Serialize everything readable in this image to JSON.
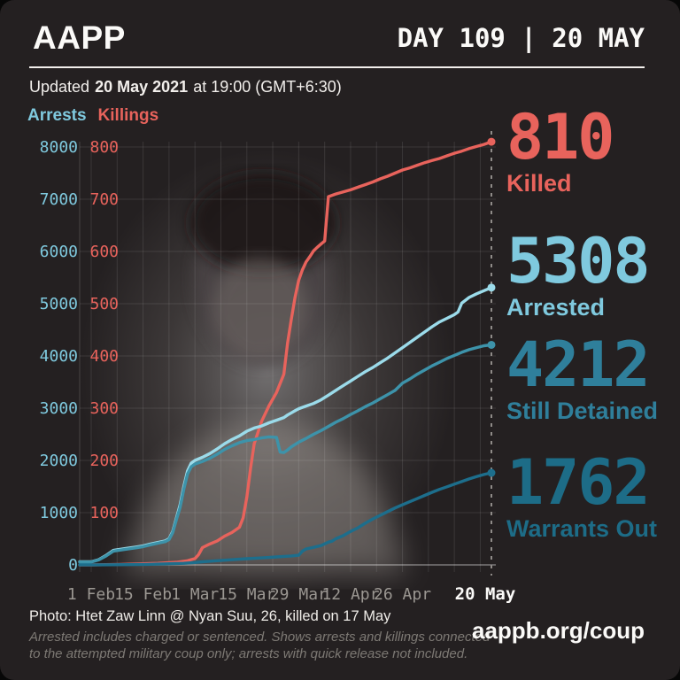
{
  "header": {
    "logo": "AAPP",
    "day_label": "DAY 109 | 20 MAY",
    "updated_prefix": "Updated",
    "updated_date": "20 May 2021",
    "updated_suffix": "at 19:00 (GMT+6:30)"
  },
  "legend": {
    "arrests_label": "Arrests",
    "killings_label": "Killings"
  },
  "stats": {
    "killed": {
      "value": "810",
      "label": "Killed",
      "color": "#e8635c"
    },
    "arrested": {
      "value": "5308",
      "label": "Arrested",
      "color": "#7fc9de"
    },
    "detained": {
      "value": "4212",
      "label": "Still Detained",
      "color": "#2f7f9b"
    },
    "warrants": {
      "value": "1762",
      "label": "Warrants Out",
      "color": "#1d6c87"
    }
  },
  "footer": {
    "photo_caption": "Photo: Htet Zaw Linn @ Nyan Suu, 26, killed on 17 May",
    "disclaimer_line1": "Arrested includes charged or sentenced. Shows arrests and killings connected",
    "disclaimer_line2": "to the attempted military coup only; arrests with quick release not included.",
    "website": "aappb.org/coup"
  },
  "chart_data": {
    "type": "line",
    "background_photo": "grayscale portrait of Htet Zaw Linn",
    "grid": {
      "vertical_interval_days": 7,
      "horizontal_interval_arrests": 1000
    },
    "x_ticks": [
      {
        "day": 0,
        "label": "1 Feb"
      },
      {
        "day": 14,
        "label": "15 Feb"
      },
      {
        "day": 28,
        "label": "1 Mar"
      },
      {
        "day": 42,
        "label": "15 Mar"
      },
      {
        "day": 56,
        "label": "29 Mar"
      },
      {
        "day": 70,
        "label": "12 Apr"
      },
      {
        "day": 84,
        "label": "26 Apr"
      }
    ],
    "x_end": {
      "day": 108,
      "label": "20 May"
    },
    "y_axis_arrests": {
      "title": "Arrests",
      "color": "#7fc9de",
      "max": 8000,
      "ticks": [
        8000,
        7000,
        6000,
        5000,
        4000,
        3000,
        2000,
        1000,
        0
      ]
    },
    "y_axis_killings": {
      "title": "Killings",
      "color": "#e8635c",
      "max": 800,
      "ticks": [
        800,
        700,
        600,
        500,
        400,
        300,
        200,
        100
      ]
    },
    "series": [
      {
        "id": "killings",
        "name": "Killings",
        "axis": "killings",
        "color": "#e8635c",
        "end_value": 810,
        "points": [
          [
            0,
            0
          ],
          [
            8,
            1
          ],
          [
            18,
            3
          ],
          [
            23,
            5
          ],
          [
            26,
            8
          ],
          [
            28,
            12
          ],
          [
            29,
            20
          ],
          [
            30,
            33
          ],
          [
            32,
            40
          ],
          [
            34,
            46
          ],
          [
            36,
            55
          ],
          [
            38,
            62
          ],
          [
            40,
            72
          ],
          [
            41,
            90
          ],
          [
            42,
            130
          ],
          [
            43,
            185
          ],
          [
            44,
            232
          ],
          [
            46,
            275
          ],
          [
            48,
            305
          ],
          [
            50,
            330
          ],
          [
            52,
            365
          ],
          [
            53,
            425
          ],
          [
            54,
            470
          ],
          [
            55,
            512
          ],
          [
            56,
            545
          ],
          [
            57,
            565
          ],
          [
            58,
            580
          ],
          [
            59,
            590
          ],
          [
            60,
            601
          ],
          [
            61,
            608
          ],
          [
            62,
            614
          ],
          [
            63,
            620
          ],
          [
            64,
            705
          ],
          [
            66,
            710
          ],
          [
            68,
            714
          ],
          [
            70,
            718
          ],
          [
            72,
            723
          ],
          [
            74,
            728
          ],
          [
            76,
            733
          ],
          [
            78,
            739
          ],
          [
            80,
            744
          ],
          [
            82,
            750
          ],
          [
            84,
            756
          ],
          [
            86,
            760
          ],
          [
            88,
            765
          ],
          [
            90,
            770
          ],
          [
            92,
            774
          ],
          [
            94,
            778
          ],
          [
            96,
            783
          ],
          [
            98,
            788
          ],
          [
            100,
            792
          ],
          [
            102,
            797
          ],
          [
            104,
            801
          ],
          [
            106,
            805
          ],
          [
            108,
            810
          ]
        ]
      },
      {
        "id": "arrests",
        "name": "Arrests",
        "axis": "arrests",
        "color": "#9bdbea",
        "end_value": 5308,
        "points": [
          [
            0,
            60
          ],
          [
            2,
            100
          ],
          [
            4,
            180
          ],
          [
            6,
            280
          ],
          [
            8,
            300
          ],
          [
            10,
            320
          ],
          [
            12,
            340
          ],
          [
            14,
            365
          ],
          [
            16,
            400
          ],
          [
            18,
            430
          ],
          [
            20,
            460
          ],
          [
            21,
            500
          ],
          [
            22,
            640
          ],
          [
            23,
            900
          ],
          [
            24,
            1150
          ],
          [
            25,
            1500
          ],
          [
            26,
            1800
          ],
          [
            27,
            1950
          ],
          [
            28,
            2000
          ],
          [
            30,
            2060
          ],
          [
            32,
            2130
          ],
          [
            34,
            2220
          ],
          [
            36,
            2320
          ],
          [
            38,
            2400
          ],
          [
            40,
            2470
          ],
          [
            42,
            2560
          ],
          [
            44,
            2620
          ],
          [
            46,
            2660
          ],
          [
            48,
            2720
          ],
          [
            50,
            2770
          ],
          [
            52,
            2820
          ],
          [
            53,
            2870
          ],
          [
            54,
            2910
          ],
          [
            55,
            2950
          ],
          [
            56,
            2990
          ],
          [
            58,
            3040
          ],
          [
            60,
            3090
          ],
          [
            62,
            3160
          ],
          [
            64,
            3250
          ],
          [
            66,
            3340
          ],
          [
            68,
            3430
          ],
          [
            70,
            3520
          ],
          [
            72,
            3610
          ],
          [
            74,
            3700
          ],
          [
            76,
            3780
          ],
          [
            78,
            3870
          ],
          [
            80,
            3960
          ],
          [
            82,
            4060
          ],
          [
            84,
            4160
          ],
          [
            86,
            4260
          ],
          [
            88,
            4360
          ],
          [
            90,
            4460
          ],
          [
            92,
            4560
          ],
          [
            94,
            4650
          ],
          [
            96,
            4720
          ],
          [
            98,
            4790
          ],
          [
            99,
            4840
          ],
          [
            100,
            5010
          ],
          [
            102,
            5120
          ],
          [
            104,
            5190
          ],
          [
            106,
            5250
          ],
          [
            108,
            5308
          ]
        ]
      },
      {
        "id": "still-detained",
        "name": "Still Detained",
        "axis": "arrests",
        "color": "#3d93aa",
        "end_value": 4212,
        "points": [
          [
            0,
            55
          ],
          [
            2,
            95
          ],
          [
            4,
            170
          ],
          [
            6,
            265
          ],
          [
            8,
            285
          ],
          [
            10,
            305
          ],
          [
            12,
            325
          ],
          [
            14,
            350
          ],
          [
            16,
            385
          ],
          [
            18,
            415
          ],
          [
            20,
            445
          ],
          [
            21,
            485
          ],
          [
            22,
            620
          ],
          [
            23,
            870
          ],
          [
            24,
            1100
          ],
          [
            25,
            1450
          ],
          [
            26,
            1740
          ],
          [
            27,
            1880
          ],
          [
            28,
            1930
          ],
          [
            30,
            1980
          ],
          [
            32,
            2040
          ],
          [
            34,
            2120
          ],
          [
            36,
            2210
          ],
          [
            38,
            2280
          ],
          [
            40,
            2340
          ],
          [
            42,
            2380
          ],
          [
            44,
            2400
          ],
          [
            46,
            2430
          ],
          [
            48,
            2450
          ],
          [
            50,
            2440
          ],
          [
            51,
            2160
          ],
          [
            52,
            2150
          ],
          [
            53,
            2200
          ],
          [
            54,
            2260
          ],
          [
            56,
            2350
          ],
          [
            58,
            2420
          ],
          [
            60,
            2500
          ],
          [
            62,
            2570
          ],
          [
            64,
            2650
          ],
          [
            66,
            2730
          ],
          [
            68,
            2800
          ],
          [
            70,
            2880
          ],
          [
            72,
            2950
          ],
          [
            74,
            3030
          ],
          [
            76,
            3100
          ],
          [
            78,
            3180
          ],
          [
            80,
            3260
          ],
          [
            82,
            3340
          ],
          [
            84,
            3480
          ],
          [
            86,
            3560
          ],
          [
            88,
            3650
          ],
          [
            90,
            3730
          ],
          [
            92,
            3810
          ],
          [
            94,
            3880
          ],
          [
            96,
            3950
          ],
          [
            98,
            4010
          ],
          [
            100,
            4070
          ],
          [
            102,
            4120
          ],
          [
            104,
            4160
          ],
          [
            106,
            4195
          ],
          [
            108,
            4212
          ]
        ]
      },
      {
        "id": "warrants-out",
        "name": "Warrants Out",
        "axis": "arrests",
        "color": "#1d6e8c",
        "end_value": 1762,
        "points": [
          [
            0,
            0
          ],
          [
            10,
            5
          ],
          [
            15,
            10
          ],
          [
            20,
            20
          ],
          [
            25,
            30
          ],
          [
            28,
            45
          ],
          [
            30,
            60
          ],
          [
            33,
            75
          ],
          [
            36,
            90
          ],
          [
            39,
            105
          ],
          [
            42,
            118
          ],
          [
            45,
            130
          ],
          [
            48,
            142
          ],
          [
            50,
            152
          ],
          [
            52,
            162
          ],
          [
            54,
            172
          ],
          [
            56,
            185
          ],
          [
            57,
            265
          ],
          [
            58,
            305
          ],
          [
            60,
            335
          ],
          [
            62,
            370
          ],
          [
            64,
            435
          ],
          [
            65,
            455
          ],
          [
            66,
            500
          ],
          [
            68,
            560
          ],
          [
            70,
            640
          ],
          [
            72,
            710
          ],
          [
            74,
            800
          ],
          [
            76,
            880
          ],
          [
            78,
            950
          ],
          [
            80,
            1020
          ],
          [
            82,
            1090
          ],
          [
            84,
            1150
          ],
          [
            86,
            1210
          ],
          [
            88,
            1270
          ],
          [
            90,
            1330
          ],
          [
            92,
            1390
          ],
          [
            94,
            1445
          ],
          [
            96,
            1495
          ],
          [
            98,
            1545
          ],
          [
            100,
            1595
          ],
          [
            102,
            1645
          ],
          [
            104,
            1690
          ],
          [
            106,
            1730
          ],
          [
            108,
            1762
          ]
        ]
      }
    ]
  }
}
